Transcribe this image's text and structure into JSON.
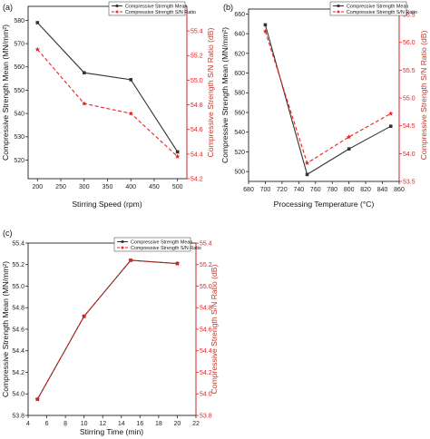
{
  "colors": {
    "mean": "#333333",
    "sn": "#e8231c",
    "axis": "#222222",
    "right_axis": "#d62728"
  },
  "chart_data": [
    {
      "type": "line",
      "panel_label": "(a)",
      "xlabel": "Stirring Speed (rpm)",
      "ylabel": "Compressive Strength Mean (MN/mm²)",
      "ylabel_right": "Compressive Strength S/N Ratio (dB)",
      "x": [
        200,
        300,
        400,
        500
      ],
      "xticks": [
        "200",
        "250",
        "300",
        "350",
        "400",
        "450",
        "500"
      ],
      "xlim": [
        180,
        520
      ],
      "ylim": [
        512,
        586
      ],
      "yticks": [
        "520",
        "530",
        "540",
        "550",
        "560",
        "570",
        "580"
      ],
      "ylim_right": [
        54.2,
        55.6
      ],
      "yticks_right": [
        "54.2",
        "54.4",
        "54.6",
        "54.8",
        "55.0",
        "55.2",
        "55.4"
      ],
      "legend_position": "top-right",
      "series": [
        {
          "name": "Compressive Strength Mean",
          "axis": "left",
          "style": "solid",
          "marker": "square",
          "values": [
            579,
            557.5,
            554.5,
            523.5
          ]
        },
        {
          "name": "Compressive Strength S/N Ratio",
          "axis": "right",
          "style": "dashed",
          "marker": "star",
          "values": [
            55.25,
            54.81,
            54.73,
            54.38
          ]
        }
      ]
    },
    {
      "type": "line",
      "panel_label": "(b)",
      "xlabel": "Processing Temperature (°C)",
      "ylabel": "Compressive Strength Mean (MN/mm²)",
      "ylabel_right": "Compressive Strength S/N Ratio (dB)",
      "x": [
        700,
        750,
        800,
        850
      ],
      "xticks": [
        "680",
        "700",
        "720",
        "740",
        "760",
        "780",
        "800",
        "820",
        "840",
        "860"
      ],
      "xlim": [
        680,
        860
      ],
      "ylim": [
        490,
        665
      ],
      "yticks": [
        "500",
        "520",
        "540",
        "560",
        "580",
        "600",
        "620",
        "640",
        "660"
      ],
      "ylim_right": [
        53.5,
        56.6
      ],
      "yticks_right": [
        "53.5",
        "54.0",
        "54.5",
        "55.0",
        "55.5",
        "56.0",
        "56.5"
      ],
      "legend_position": "top-right",
      "series": [
        {
          "name": "Compressive Strength Mean",
          "axis": "left",
          "style": "solid",
          "marker": "square",
          "values": [
            649,
            497,
            523,
            546
          ]
        },
        {
          "name": "Compressive Strength S/N Ratio",
          "axis": "right",
          "style": "dashed",
          "marker": "star",
          "values": [
            56.2,
            53.83,
            54.3,
            54.72
          ]
        }
      ]
    },
    {
      "type": "line",
      "panel_label": "(c)",
      "xlabel": "Stirring Time (min)",
      "ylabel": "Compressive Strength Mean (MN/mm²)",
      "ylabel_right": "Compressive Strength S/N Ratio (dB)",
      "x": [
        5,
        10,
        15,
        20
      ],
      "xticks": [
        "4",
        "6",
        "8",
        "10",
        "12",
        "14",
        "16",
        "18",
        "20",
        "22"
      ],
      "xlim": [
        4,
        22
      ],
      "ylim": [
        53.8,
        55.4
      ],
      "yticks": [
        "53.8",
        "54.0",
        "54.2",
        "54.4",
        "54.6",
        "54.8",
        "55.0",
        "55.2",
        "55.4"
      ],
      "ylim_right": [
        53.8,
        55.4
      ],
      "yticks_right": [
        "53.8",
        "54.0",
        "54.2",
        "54.4",
        "54.6",
        "54.8",
        "55.0",
        "55.2",
        "55.4"
      ],
      "legend_position": "top-right",
      "series": [
        {
          "name": "Compressive Strength Mean",
          "axis": "left",
          "style": "solid",
          "marker": "square",
          "values": [
            53.95,
            54.72,
            55.24,
            55.21
          ]
        },
        {
          "name": "Compressive Strength S/N Ratio",
          "axis": "right",
          "style": "dashed",
          "marker": "star",
          "values": [
            53.95,
            54.72,
            55.24,
            55.21
          ]
        }
      ]
    }
  ]
}
